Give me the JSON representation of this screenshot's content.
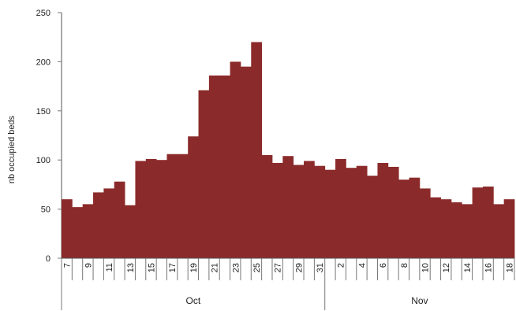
{
  "chart_data": {
    "type": "bar",
    "ylabel": "nb occupied beds",
    "ylim": [
      0,
      250
    ],
    "yticks": [
      0,
      50,
      100,
      150,
      200,
      250
    ],
    "grid": false,
    "legend": "none",
    "bar_color": "#8b2a2a",
    "categories": [
      "7",
      "8",
      "9",
      "10",
      "11",
      "12",
      "13",
      "14",
      "15",
      "16",
      "17",
      "18",
      "19",
      "20",
      "21",
      "22",
      "23",
      "24",
      "25",
      "26",
      "27",
      "28",
      "29",
      "30",
      "31",
      "1",
      "2",
      "3",
      "4",
      "5",
      "6",
      "7",
      "8",
      "9",
      "10",
      "11",
      "12",
      "13",
      "14",
      "15",
      "16",
      "17",
      "18"
    ],
    "tick_labels": [
      "7",
      "",
      "9",
      "",
      "11",
      "",
      "13",
      "",
      "15",
      "",
      "17",
      "",
      "19",
      "",
      "21",
      "",
      "23",
      "",
      "25",
      "",
      "27",
      "",
      "29",
      "",
      "31",
      "",
      "2",
      "",
      "4",
      "",
      "6",
      "",
      "8",
      "",
      "10",
      "",
      "12",
      "",
      "14",
      "",
      "16",
      "",
      "18"
    ],
    "values": [
      60,
      52,
      55,
      67,
      71,
      78,
      54,
      99,
      101,
      100,
      106,
      106,
      124,
      171,
      186,
      186,
      200,
      195,
      220,
      105,
      97,
      104,
      95,
      99,
      94,
      90,
      101,
      92,
      94,
      84,
      97,
      93,
      80,
      82,
      71,
      62,
      60,
      57,
      55,
      72,
      73,
      55,
      60
    ],
    "groups": [
      {
        "label": "Oct",
        "start": 0,
        "end": 25
      },
      {
        "label": "Nov",
        "start": 25,
        "end": 43
      }
    ]
  }
}
